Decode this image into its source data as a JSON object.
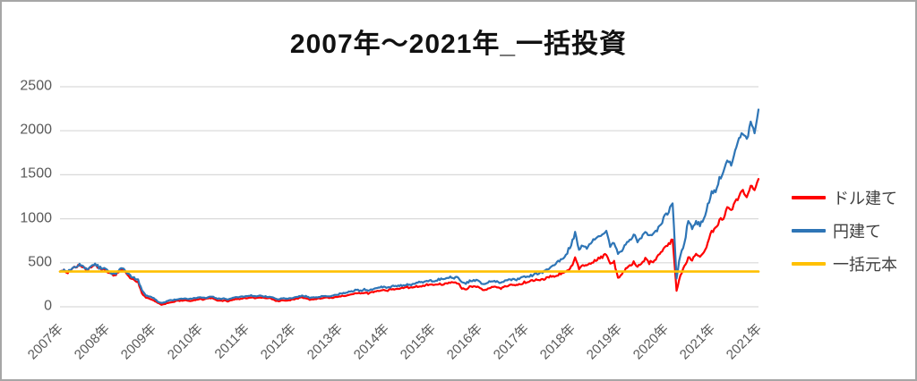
{
  "frame": {
    "border_color": "#a6a6a6",
    "background": "#ffffff"
  },
  "chart_data": {
    "type": "line",
    "title": "2007年～2021年_一括投資",
    "xlabel": "",
    "ylabel": "",
    "ylim": [
      0,
      2500
    ],
    "y_ticks": [
      0,
      500,
      1000,
      1500,
      2000,
      2500
    ],
    "grid": "horizontal",
    "gridline_color": "#d9d9d9",
    "axis_text_color": "#595959",
    "legend_position": "right",
    "x_labels": [
      "2007年",
      "2008年",
      "2009年",
      "2010年",
      "2011年",
      "2012年",
      "2013年",
      "2014年",
      "2015年",
      "2016年",
      "2017年",
      "2018年",
      "2019年",
      "2020年",
      "2021年",
      "2021年"
    ],
    "x_start_year": 2007,
    "points_per_year": 12,
    "series": [
      {
        "name": "ドル建て",
        "color": "#ff0000",
        "values": [
          400,
          410,
          394,
          426,
          450,
          468,
          446,
          412,
          452,
          481,
          432,
          421,
          406,
          366,
          350,
          391,
          421,
          381,
          321,
          311,
          281,
          152,
          101,
          90,
          76,
          46,
          22,
          36,
          50,
          56,
          66,
          71,
          76,
          68,
          72,
          81,
          86,
          81,
          96,
          101,
          76,
          66,
          72,
          62,
          72,
          86,
          88,
          98,
          101,
          108,
          98,
          108,
          102,
          96,
          98,
          71,
          62,
          76,
          72,
          76,
          86,
          96,
          106,
          101,
          82,
          88,
          92,
          98,
          106,
          101,
          102,
          111,
          121,
          128,
          138,
          142,
          158,
          148,
          162,
          152,
          166,
          176,
          188,
          196,
          186,
          198,
          202,
          206,
          212,
          222,
          216,
          232,
          228,
          236,
          251,
          248,
          241,
          262,
          258,
          268,
          276,
          266,
          272,
          211,
          196,
          226,
          236,
          228,
          201,
          186,
          216,
          222,
          228,
          211,
          236,
          242,
          248,
          241,
          256,
          276,
          286,
          298,
          302,
          311,
          318,
          331,
          346,
          356,
          371,
          391,
          416,
          451,
          551,
          441,
          471,
          461,
          501,
          521,
          546,
          566,
          591,
          481,
          511,
          321,
          381,
          431,
          461,
          501,
          451,
          491,
          541,
          501,
          521,
          561,
          621,
          661,
          701,
          761,
          186,
          361,
          451,
          561,
          541,
          601,
          581,
          621,
          721,
          851,
          901,
          981,
          1021,
          1121,
          1081,
          1181,
          1251,
          1321,
          1261,
          1381,
          1301,
          1451
        ]
      },
      {
        "name": "円建て",
        "color": "#2e75b6",
        "values": [
          400,
          415,
          398,
          432,
          455,
          478,
          452,
          422,
          462,
          490,
          448,
          432,
          420,
          385,
          368,
          410,
          438,
          402,
          348,
          330,
          302,
          182,
          132,
          115,
          95,
          62,
          42,
          55,
          70,
          76,
          85,
          92,
          96,
          88,
          93,
          102,
          106,
          98,
          112,
          118,
          96,
          88,
          95,
          86,
          96,
          106,
          108,
          118,
          121,
          126,
          116,
          126,
          120,
          113,
          116,
          92,
          86,
          96,
          92,
          96,
          106,
          116,
          122,
          118,
          101,
          106,
          111,
          116,
          122,
          120,
          126,
          136,
          151,
          161,
          171,
          176,
          196,
          181,
          196,
          186,
          201,
          211,
          221,
          226,
          216,
          231,
          236,
          241,
          246,
          256,
          251,
          266,
          276,
          271,
          291,
          296,
          291,
          311,
          316,
          331,
          341,
          331,
          336,
          271,
          266,
          291,
          301,
          296,
          271,
          256,
          281,
          286,
          291,
          271,
          296,
          301,
          306,
          311,
          321,
          336,
          346,
          356,
          371,
          386,
          401,
          421,
          451,
          481,
          521,
          561,
          621,
          701,
          831,
          651,
          701,
          681,
          741,
          761,
          801,
          831,
          871,
          701,
          741,
          581,
          651,
          721,
          761,
          821,
          741,
          801,
          856,
          791,
          831,
          871,
          951,
          1021,
          1081,
          1191,
          321,
          601,
          721,
          981,
          901,
          961,
          931,
          1001,
          1151,
          1291,
          1321,
          1451,
          1521,
          1681,
          1621,
          1781,
          1901,
          1981,
          1891,
          2081,
          1981,
          2241
        ]
      },
      {
        "name": "一括元本",
        "color": "#ffc000",
        "constant": 400
      }
    ]
  }
}
